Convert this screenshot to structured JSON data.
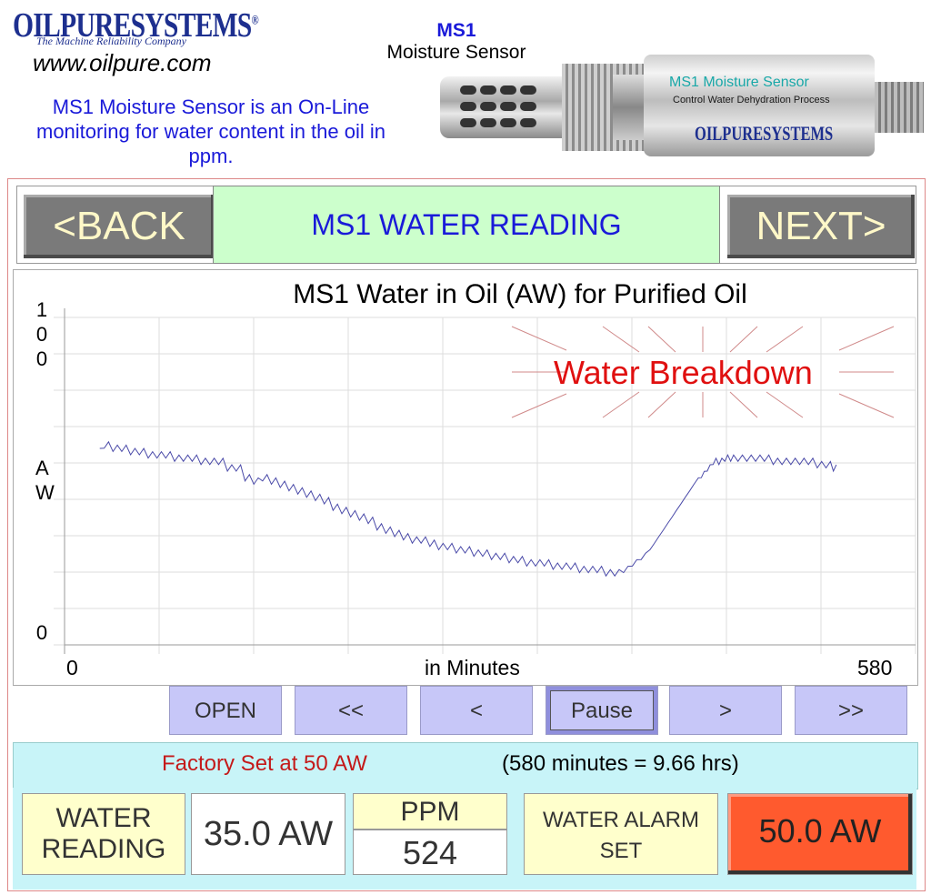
{
  "header": {
    "logo_text": "OILPURESYSTEMS",
    "logo_mark": "®",
    "logo_tagline": "The Machine Reliability Company",
    "website": "www.oilpure.com",
    "intro": "MS1 Moisture Sensor is an On-Line monitoring for water content in the oil in ppm.",
    "product_code": "MS1",
    "product_name": "Moisture Sensor",
    "sensor_label_1": "MS1 Moisture Sensor",
    "sensor_label_2": "Control Water Dehydration Process",
    "sensor_label_3": "OILPURESYSTEMS"
  },
  "nav": {
    "back_label": "<BACK",
    "next_label": "NEXT>",
    "screen_title": "MS1 WATER READING"
  },
  "chart_data": {
    "type": "line",
    "title": "MS1 Water in Oil (AW) for Purified Oil",
    "ylabel": "AW",
    "xlabel": "in Minutes",
    "y_tick_labels": [
      "100",
      "0"
    ],
    "x_tick_labels": [
      "0",
      "580"
    ],
    "xlim": [
      0,
      580
    ],
    "ylim": [
      0,
      100
    ],
    "grid": true,
    "annotation": "Water Breakdown",
    "series": [
      {
        "color": "#4a4aa8",
        "x": [
          24,
          30,
          36,
          42,
          48,
          54,
          60,
          66,
          72,
          78,
          84,
          90,
          96,
          102,
          108,
          114,
          120,
          126,
          132,
          138,
          144,
          150,
          156,
          162,
          168,
          174,
          180,
          186,
          192,
          198,
          204,
          210,
          216,
          222,
          228,
          234,
          240,
          246,
          252,
          258,
          264,
          270,
          276,
          282,
          288,
          294,
          300,
          306,
          312,
          318,
          324,
          330,
          336,
          342,
          348,
          354,
          360,
          366,
          372,
          378,
          384,
          390,
          396,
          402,
          408,
          414,
          420,
          426,
          432,
          436,
          440,
          444,
          448,
          452,
          456,
          462,
          468,
          474,
          480,
          486,
          492,
          498,
          504,
          510,
          516,
          522,
          526
        ],
        "y": [
          60,
          62,
          61,
          61,
          60,
          60,
          59,
          59,
          59,
          58,
          58,
          58,
          57,
          57,
          57,
          55,
          55,
          52,
          51,
          52,
          51,
          50,
          49,
          48,
          47,
          46,
          45,
          43,
          42,
          41,
          40,
          39,
          37,
          36,
          35,
          34,
          33,
          33,
          32,
          31,
          31,
          30,
          30,
          29,
          29,
          28,
          28,
          27,
          27,
          26,
          26,
          26,
          25,
          25,
          25,
          24,
          24,
          24,
          23,
          23,
          24,
          26,
          28,
          31,
          35,
          39,
          43,
          47,
          51,
          53,
          55,
          57,
          57,
          58,
          58,
          58,
          58,
          58,
          58,
          57,
          57,
          57,
          57,
          57,
          56,
          56,
          55
        ]
      }
    ]
  },
  "playback": {
    "open": "OPEN",
    "rewind_fast": "<<",
    "rewind": "<",
    "pause": "Pause",
    "forward": ">",
    "forward_fast": ">>"
  },
  "info": {
    "factory_set": "Factory Set at 50 AW",
    "minutes_note": "(580 minutes = 9.66 hrs)"
  },
  "readings": {
    "water_reading_label": "WATER READING",
    "water_reading_value": "35.0 AW",
    "ppm_label": "PPM",
    "ppm_value": "524",
    "alarm_label": "WATER ALARM SET",
    "alarm_value": "50.0 AW",
    "alarm_color": "#ff5a2e"
  }
}
